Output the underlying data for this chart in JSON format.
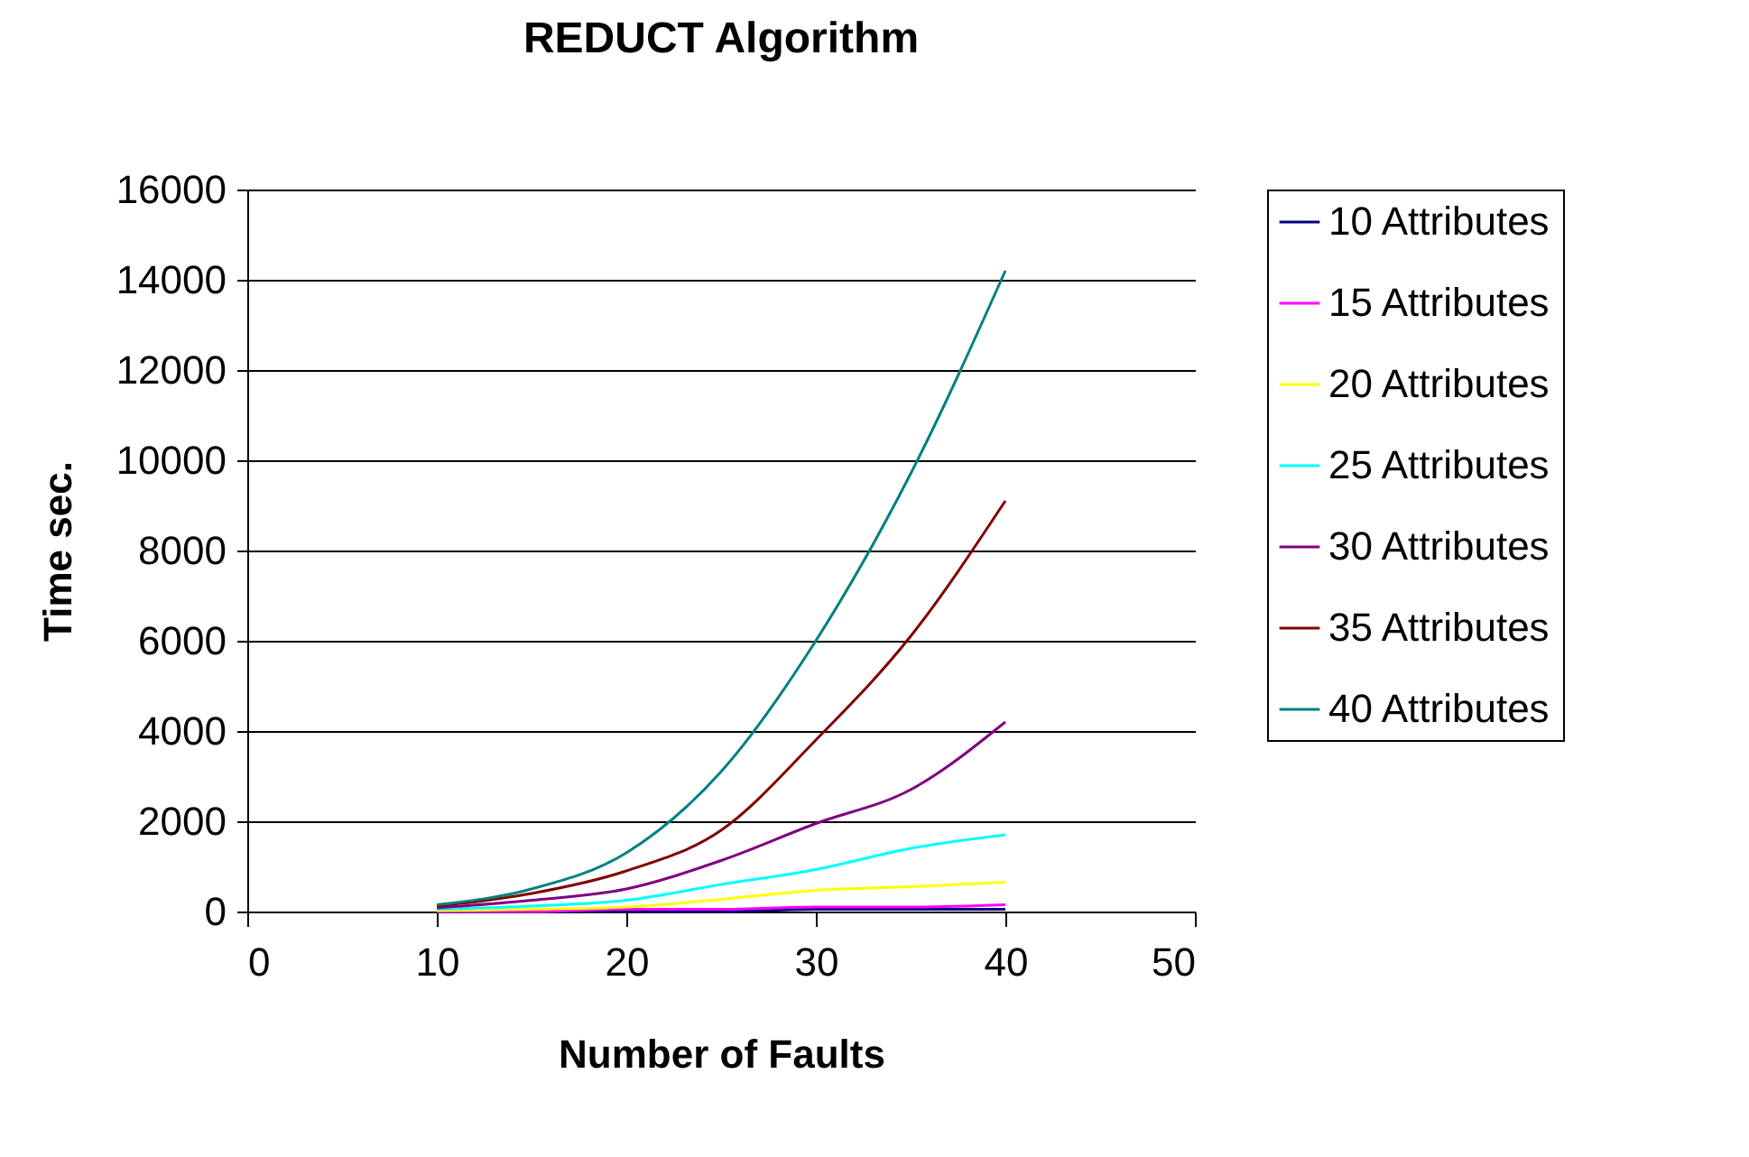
{
  "chart_data": {
    "type": "line",
    "title": "REDUCT Algorithm",
    "xlabel": "Number of Faults",
    "ylabel": "Time sec.",
    "x": [
      10,
      15,
      20,
      25,
      30,
      35,
      40
    ],
    "series": [
      {
        "name": "10 Attributes",
        "color": "#000080",
        "values": [
          0,
          0,
          0,
          0,
          50,
          50,
          50
        ]
      },
      {
        "name": "15 Attributes",
        "color": "#ff00ff",
        "values": [
          0,
          0,
          50,
          50,
          100,
          100,
          150
        ]
      },
      {
        "name": "20 Attributes",
        "color": "#ffff00",
        "values": [
          20,
          50,
          100,
          270,
          470,
          550,
          650
        ]
      },
      {
        "name": "25 Attributes",
        "color": "#00ffff",
        "values": [
          50,
          120,
          250,
          600,
          930,
          1400,
          1700
        ]
      },
      {
        "name": "30 Attributes",
        "color": "#800080",
        "values": [
          80,
          250,
          500,
          1130,
          1950,
          2700,
          4200
        ]
      },
      {
        "name": "35 Attributes",
        "color": "#800000",
        "values": [
          120,
          400,
          900,
          1800,
          3800,
          6100,
          9100
        ]
      },
      {
        "name": "40 Attributes",
        "color": "#008080",
        "values": [
          150,
          500,
          1300,
          3100,
          6000,
          9700,
          14200
        ]
      }
    ],
    "xlim": [
      0,
      50
    ],
    "xticks": [
      0,
      10,
      20,
      30,
      40,
      50
    ],
    "ylim": [
      0,
      16000
    ],
    "yticks": [
      0,
      2000,
      4000,
      6000,
      8000,
      10000,
      12000,
      14000,
      16000
    ],
    "grid": "y",
    "legend": "right",
    "marker": "none",
    "line_style": "solid"
  }
}
